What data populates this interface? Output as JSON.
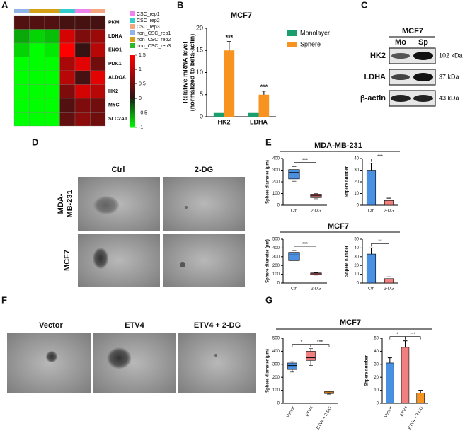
{
  "panel_labels": [
    "A",
    "B",
    "C",
    "D",
    "E",
    "F",
    "G"
  ],
  "heatmap": {
    "genes": [
      "PKM",
      "LDHA",
      "ENO1",
      "PDK1",
      "ALDOA",
      "HK2",
      "MYC",
      "SLC2A1"
    ],
    "legend": [
      "CSC_rep1",
      "CSC_rep2",
      "CSC_rep3",
      "non_CSC_rep1",
      "non_CSC_rep2",
      "non_CSC_rep3"
    ],
    "legend_colors": [
      "#ee82ee",
      "#33cccc",
      "#f4a582",
      "#8fb4e8",
      "#d4a017",
      "#2eb82e"
    ],
    "scale_ticks": [
      1.5,
      1,
      0.5,
      0,
      -0.5,
      -1
    ],
    "values": [
      [
        0.3,
        0.3,
        0.3,
        0.2,
        0.2,
        0.2
      ],
      [
        -0.6,
        -0.8,
        -0.7,
        1.2,
        0.6,
        0.8
      ],
      [
        -0.8,
        -1,
        -0.9,
        1.5,
        0.1,
        1.0
      ],
      [
        -1,
        -1,
        -1,
        0.9,
        1.3,
        0.5
      ],
      [
        -1,
        -1,
        -1,
        1.0,
        0.2,
        1.3
      ],
      [
        -1,
        -1,
        -1,
        0.6,
        1.2,
        1.0
      ],
      [
        -1,
        -1,
        -1,
        0.3,
        0.6,
        0.5
      ],
      [
        -1,
        -1,
        -1,
        0.4,
        0.7,
        0.5
      ]
    ]
  },
  "blot": {
    "title": "MCF7",
    "lanes": [
      "Mo",
      "Sp"
    ],
    "bands": [
      {
        "name": "HK2",
        "size": "102 kDa"
      },
      {
        "name": "LDHA",
        "size": "37 kDa"
      },
      {
        "name": "β-actin",
        "size": "43 kDa"
      }
    ]
  },
  "panel_d": {
    "columns": [
      "Ctrl",
      "2-DG"
    ],
    "rows": [
      "MDA-",
      "MB-231",
      "MCF7"
    ]
  },
  "panel_e": {
    "titles": [
      "MDA-MB-231",
      "MCF7"
    ]
  },
  "panel_f": {
    "columns": [
      "Vector",
      "ETV4",
      "ETV4 + 2-DG"
    ]
  },
  "panel_g": {
    "title": "MCF7"
  },
  "chart_data": [
    {
      "type": "bar",
      "title": "MCF7",
      "y_label": "Relative mRNA level",
      "y_label_2": "(normalized to beta-actin)",
      "categories": [
        "HK2",
        "LDHA"
      ],
      "series": [
        {
          "name": "Monolayer",
          "color": "#1a9e6e",
          "values": [
            1,
            1
          ]
        },
        {
          "name": "Sphere",
          "color": "#f7931e",
          "values": [
            15,
            5
          ],
          "errors": [
            2,
            0.8
          ]
        }
      ],
      "annotations": [
        "***",
        "***"
      ],
      "ylim": [
        0,
        20
      ],
      "yticks": [
        0,
        5,
        10,
        15,
        20
      ]
    },
    {
      "type": "box",
      "y_label": "Sphere diameter (μm)",
      "categories": [
        "Ctrl",
        "2-DG"
      ],
      "colors": [
        "#4a90e2",
        "#f08080"
      ],
      "boxes": [
        {
          "min": 205,
          "q1": 225,
          "median": 280,
          "q3": 305,
          "max": 330
        },
        {
          "min": 55,
          "q1": 65,
          "median": 80,
          "q3": 95,
          "max": 100
        }
      ],
      "significance": [
        "***"
      ],
      "ylim": [
        0,
        400
      ],
      "yticks": [
        0,
        100,
        200,
        300,
        400
      ]
    },
    {
      "type": "bar",
      "y_label": "Shpere number",
      "categories": [
        "Ctrl",
        "2-DG"
      ],
      "colors": [
        "#4a90e2",
        "#f08080"
      ],
      "values": [
        30,
        4
      ],
      "errors": [
        6,
        2
      ],
      "significance": [
        "***"
      ],
      "ylim": [
        0,
        40
      ],
      "yticks": [
        0,
        10,
        20,
        30,
        40
      ]
    },
    {
      "type": "box",
      "y_label": "Sphere diameter (μm)",
      "categories": [
        "Ctrl",
        "2-DG"
      ],
      "colors": [
        "#4a90e2",
        "#f08080"
      ],
      "boxes": [
        {
          "min": 230,
          "q1": 255,
          "median": 320,
          "q3": 350,
          "max": 370
        },
        {
          "min": 90,
          "q1": 95,
          "median": 105,
          "q3": 115,
          "max": 120
        }
      ],
      "significance": [
        "***"
      ],
      "ylim": [
        0,
        500
      ],
      "yticks": [
        0,
        100,
        200,
        300,
        400,
        500
      ]
    },
    {
      "type": "bar",
      "y_label": "Shpere number",
      "categories": [
        "Ctrl",
        "2-DG"
      ],
      "colors": [
        "#4a90e2",
        "#f08080"
      ],
      "values": [
        33,
        5
      ],
      "errors": [
        7,
        2
      ],
      "significance": [
        "**"
      ],
      "ylim": [
        0,
        50
      ],
      "yticks": [
        0,
        10,
        20,
        30,
        40,
        50
      ]
    },
    {
      "type": "box",
      "y_label": "Sphere diameter (μm)",
      "categories": [
        "Vector",
        "ETV4",
        "ETV4 + 2-DG"
      ],
      "colors": [
        "#4a90e2",
        "#f08080",
        "#f7931e"
      ],
      "boxes": [
        {
          "min": 240,
          "q1": 260,
          "median": 290,
          "q3": 310,
          "max": 320
        },
        {
          "min": 290,
          "q1": 330,
          "median": 350,
          "q3": 400,
          "max": 420
        },
        {
          "min": 70,
          "q1": 75,
          "median": 80,
          "q3": 90,
          "max": 95
        }
      ],
      "significance": [
        "*",
        "***"
      ],
      "ylim": [
        0,
        500
      ],
      "yticks": [
        0,
        100,
        200,
        300,
        400,
        500
      ]
    },
    {
      "type": "bar",
      "y_label": "Shpere number",
      "categories": [
        "Vector",
        "ETV4",
        "ETV4 + 2-DG"
      ],
      "colors": [
        "#4a90e2",
        "#f08080",
        "#f7931e"
      ],
      "values": [
        31,
        43,
        8
      ],
      "errors": [
        4,
        5,
        2
      ],
      "significance": [
        "*",
        "***"
      ],
      "ylim": [
        0,
        50
      ],
      "yticks": [
        0,
        10,
        20,
        30,
        40,
        50
      ]
    }
  ]
}
